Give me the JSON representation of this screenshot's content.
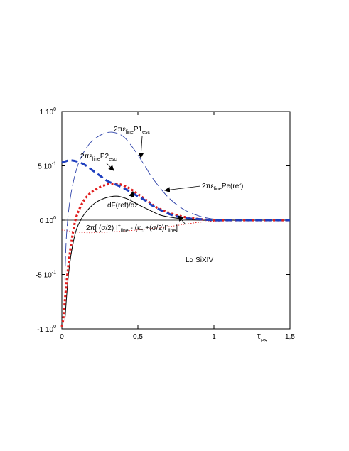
{
  "chart_data": {
    "type": "line",
    "title": "",
    "xlabel": "τ",
    "xlabel_sub": "es",
    "ylabel": "",
    "xlim": [
      0,
      1.5
    ],
    "ylim": [
      -1.0,
      1.0
    ],
    "grid": false,
    "legend": "none",
    "x_ticks": [
      {
        "value": 0,
        "label": "0"
      },
      {
        "value": 0.5,
        "label": "0,5"
      },
      {
        "value": 1.0,
        "label": "1"
      },
      {
        "value": 1.5,
        "label": "1,5"
      }
    ],
    "y_ticks": [
      {
        "value": 1.0,
        "label": "1 10",
        "sup": "0"
      },
      {
        "value": 0.5,
        "label": "5 10",
        "sup": "-1"
      },
      {
        "value": 0.0,
        "label": "0 10",
        "sup": "0"
      },
      {
        "value": -0.5,
        "label": "-5 10",
        "sup": "-1"
      },
      {
        "value": -1.0,
        "label": "-1 10",
        "sup": "0"
      }
    ],
    "zero_line": true,
    "series": [
      {
        "id": "p1esc",
        "color": "#2a3fa8",
        "style": "long-dash-thin",
        "x": [
          0.02,
          0.03,
          0.05,
          0.08,
          0.12,
          0.18,
          0.25,
          0.32,
          0.38,
          0.42,
          0.46,
          0.5,
          0.55,
          0.6,
          0.7,
          0.8,
          0.9,
          1.0,
          1.1,
          1.2,
          1.3,
          1.5
        ],
        "y": [
          -0.55,
          -0.15,
          0.15,
          0.38,
          0.56,
          0.7,
          0.78,
          0.81,
          0.79,
          0.75,
          0.68,
          0.6,
          0.49,
          0.38,
          0.21,
          0.1,
          0.04,
          0.01,
          0.0,
          0.0,
          0.0,
          0.0
        ]
      },
      {
        "id": "p2esc",
        "color": "#1f3fbf",
        "style": "dash-thick",
        "x": [
          0.0,
          0.05,
          0.1,
          0.15,
          0.2,
          0.25,
          0.3,
          0.35,
          0.4,
          0.45,
          0.5,
          0.55,
          0.6,
          0.7,
          0.8,
          0.9,
          1.0,
          1.1,
          1.2,
          1.3,
          1.5
        ],
        "y": [
          0.53,
          0.55,
          0.54,
          0.51,
          0.46,
          0.41,
          0.36,
          0.33,
          0.3,
          0.26,
          0.22,
          0.18,
          0.13,
          0.06,
          0.02,
          0.01,
          0.0,
          0.0,
          0.0,
          0.0,
          0.0
        ]
      },
      {
        "id": "pe_ref",
        "color": "#e01e1e",
        "style": "dot-thick",
        "x": [
          0.0,
          0.01,
          0.02,
          0.04,
          0.06,
          0.08,
          0.1,
          0.14,
          0.18,
          0.22,
          0.26,
          0.3,
          0.34,
          0.38,
          0.42,
          0.46,
          0.5,
          0.56,
          0.62,
          0.7,
          0.8,
          0.9,
          1.0,
          1.1,
          1.2,
          1.3,
          1.5
        ],
        "y": [
          -0.98,
          -0.9,
          -0.74,
          -0.45,
          -0.23,
          -0.06,
          0.05,
          0.17,
          0.24,
          0.28,
          0.31,
          0.33,
          0.335,
          0.33,
          0.31,
          0.28,
          0.24,
          0.18,
          0.12,
          0.07,
          0.03,
          0.01,
          0.0,
          0.0,
          0.0,
          0.0,
          0.0
        ]
      },
      {
        "id": "dfdz",
        "color": "#000000",
        "style": "solid-thin",
        "x": [
          0.02,
          0.04,
          0.06,
          0.08,
          0.1,
          0.14,
          0.18,
          0.22,
          0.26,
          0.3,
          0.34,
          0.37,
          0.4,
          0.44,
          0.48,
          0.52,
          0.58,
          0.64,
          0.7,
          0.8,
          0.9,
          1.0,
          1.1,
          1.2,
          1.5
        ],
        "y": [
          -0.92,
          -0.55,
          -0.32,
          -0.17,
          -0.07,
          0.04,
          0.11,
          0.16,
          0.19,
          0.21,
          0.22,
          0.22,
          0.21,
          0.19,
          0.16,
          0.13,
          0.09,
          0.05,
          0.03,
          0.01,
          0.0,
          0.0,
          0.0,
          0.0,
          0.0
        ]
      },
      {
        "id": "source",
        "color": "#e01e1e",
        "style": "dot-fine",
        "x": [
          0.0,
          0.05,
          0.1,
          0.15,
          0.2,
          0.3,
          0.4,
          0.5,
          0.6,
          0.7,
          0.8,
          0.9,
          1.0,
          1.1,
          1.2,
          1.5
        ],
        "y": [
          -0.09,
          -0.1,
          -0.11,
          -0.115,
          -0.115,
          -0.11,
          -0.1,
          -0.09,
          -0.075,
          -0.06,
          -0.04,
          -0.02,
          -0.01,
          0.0,
          0.0,
          0.0
        ]
      }
    ],
    "annotations": [
      {
        "id": "p1esc",
        "parts": [
          [
            "2πε",
            ""
          ],
          [
            "line",
            "sub"
          ],
          [
            "P1",
            ""
          ],
          [
            "esc",
            "sub"
          ]
        ]
      },
      {
        "id": "p2esc",
        "parts": [
          [
            "2πε",
            ""
          ],
          [
            "line",
            "sub"
          ],
          [
            "P2",
            ""
          ],
          [
            "esc",
            "sub"
          ]
        ]
      },
      {
        "id": "pe_ref",
        "parts": [
          [
            "2πε",
            ""
          ],
          [
            "line",
            "sub"
          ],
          [
            "Pe(ref)",
            ""
          ]
        ]
      },
      {
        "id": "dfdz",
        "parts": [
          [
            "dF(ref)/dz",
            ""
          ]
        ]
      },
      {
        "id": "source",
        "parts": [
          [
            "2π[  (σ/2) I",
            ""
          ],
          [
            "+",
            "sup"
          ],
          [
            "line",
            "sub"
          ],
          [
            " - (κ",
            ""
          ],
          [
            "c",
            "sub"
          ],
          [
            " +(σ/2)I",
            ""
          ],
          [
            "-",
            "sup"
          ],
          [
            "line",
            "sub"
          ],
          [
            "]",
            ""
          ]
        ]
      },
      {
        "id": "ion",
        "parts": [
          [
            "Lα  SiXIV",
            ""
          ]
        ]
      }
    ]
  }
}
